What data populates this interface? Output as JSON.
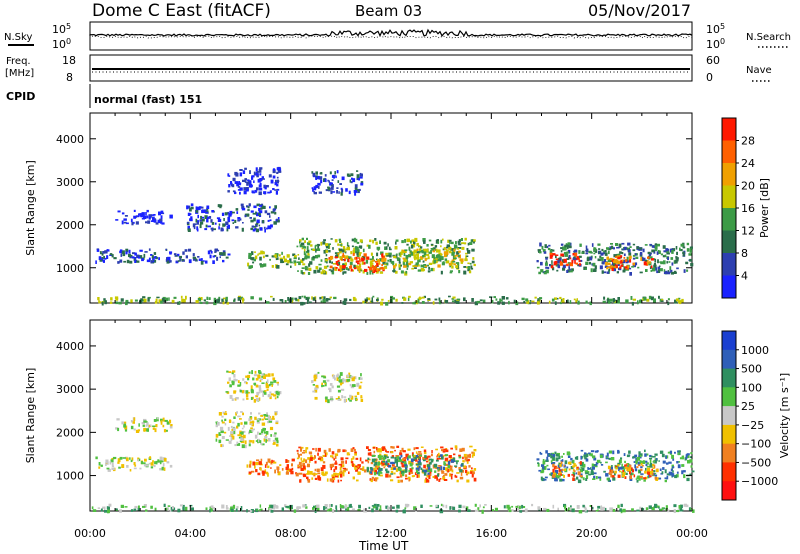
{
  "header": {
    "station": "Dome C East (fitACF)",
    "beam": "Beam 03",
    "date": "05/Nov/2017"
  },
  "status_panels": {
    "nsky": {
      "label": "N.Sky",
      "top": "10^5",
      "bottom": "10^0"
    },
    "nsearch": {
      "label": "N.Search",
      "top": "10^5",
      "bottom": "10^0"
    },
    "freq": {
      "label_line1": "Freq.",
      "label_line2": "[MHz]",
      "top": "18",
      "bottom": "8"
    },
    "nave": {
      "label": "Nave",
      "top": "60",
      "bottom": "0"
    },
    "cpid": {
      "label": "CPID",
      "mode": "normal (fast) 151"
    }
  },
  "chart_data": [
    {
      "type": "heatmap",
      "name": "power-panel",
      "ylabel": "Slant Range [km]",
      "yticks": [
        1000,
        2000,
        3000,
        4000
      ],
      "ylim": [
        180,
        4600
      ],
      "xlim": [
        0,
        24
      ],
      "colorbar": {
        "label": "Power [dB]",
        "ticks": [
          "4",
          "8",
          "12",
          "16",
          "20",
          "24",
          "28"
        ],
        "colors": [
          "#1a22ff",
          "#2d3fb0",
          "#2a6d4a",
          "#3c9b46",
          "#c8c800",
          "#f0a000",
          "#ff6000",
          "#ff1800"
        ]
      },
      "patches": [
        {
          "t0": 0.2,
          "t1": 5.6,
          "r0": 1150,
          "r1": 1450,
          "v": 1
        },
        {
          "t0": 1.0,
          "t1": 3.2,
          "r0": 2050,
          "r1": 2350,
          "v": 0
        },
        {
          "t0": 3.8,
          "t1": 7.5,
          "r0": 1900,
          "r1": 2500,
          "v": 1
        },
        {
          "t0": 5.4,
          "t1": 7.5,
          "r0": 2750,
          "r1": 3350,
          "v": 0
        },
        {
          "t0": 8.8,
          "t1": 10.8,
          "r0": 2750,
          "r1": 3300,
          "v": 1
        },
        {
          "t0": 6.2,
          "t1": 8.2,
          "r0": 1050,
          "r1": 1400,
          "v": 3
        },
        {
          "t0": 8.2,
          "t1": 15.3,
          "r0": 900,
          "r1": 1700,
          "v": 3
        },
        {
          "t0": 9.5,
          "t1": 11.8,
          "r0": 950,
          "r1": 1350,
          "v": 6
        },
        {
          "t0": 12.0,
          "t1": 14.8,
          "r0": 1050,
          "r1": 1450,
          "v": 4
        },
        {
          "t0": 17.8,
          "t1": 24.0,
          "r0": 900,
          "r1": 1600,
          "v": 2
        },
        {
          "t0": 18.3,
          "t1": 19.5,
          "r0": 1050,
          "r1": 1350,
          "v": 7
        },
        {
          "t0": 20.5,
          "t1": 22.5,
          "r0": 1000,
          "r1": 1300,
          "v": 6
        },
        {
          "t0": 0.0,
          "t1": 24.0,
          "r0": 200,
          "r1": 350,
          "v": 3
        }
      ]
    },
    {
      "type": "heatmap",
      "name": "velocity-panel",
      "ylabel": "Slant Range [km]",
      "xlabel": "Time UT",
      "xticks": [
        "00:00",
        "04:00",
        "08:00",
        "12:00",
        "16:00",
        "20:00",
        "00:00"
      ],
      "yticks": [
        1000,
        2000,
        3000,
        4000
      ],
      "ylim": [
        180,
        4600
      ],
      "xlim": [
        0,
        24
      ],
      "colorbar": {
        "label": "Velocity [m s⁻¹]",
        "ticks": [
          "1000",
          "500",
          "100",
          "25",
          "−25",
          "−100",
          "−500",
          "−1000"
        ],
        "colors": [
          "#1a3fd0",
          "#2f5fb8",
          "#2f8f60",
          "#50c040",
          "#c8c8c8",
          "#f0c000",
          "#f08020",
          "#ff3000",
          "#ff1010"
        ]
      },
      "patches": [
        {
          "t0": 0.2,
          "t1": 3.2,
          "r0": 1150,
          "r1": 1450,
          "v": 4
        },
        {
          "t0": 1.0,
          "t1": 3.2,
          "r0": 2050,
          "r1": 2350,
          "v": 4
        },
        {
          "t0": 5.0,
          "t1": 7.5,
          "r0": 1700,
          "r1": 2500,
          "v": 4
        },
        {
          "t0": 5.4,
          "t1": 7.5,
          "r0": 2750,
          "r1": 3450,
          "v": 4
        },
        {
          "t0": 8.8,
          "t1": 10.8,
          "r0": 2750,
          "r1": 3400,
          "v": 4
        },
        {
          "t0": 6.2,
          "t1": 8.2,
          "r0": 1050,
          "r1": 1400,
          "v": 6
        },
        {
          "t0": 8.2,
          "t1": 15.3,
          "r0": 900,
          "r1": 1700,
          "v": 6
        },
        {
          "t0": 11.0,
          "t1": 14.8,
          "r0": 1050,
          "r1": 1500,
          "v": 2
        },
        {
          "t0": 17.8,
          "t1": 24.0,
          "r0": 900,
          "r1": 1600,
          "v": 2
        },
        {
          "t0": 18.4,
          "t1": 19.6,
          "r0": 950,
          "r1": 1350,
          "v": 6
        },
        {
          "t0": 20.6,
          "t1": 22.6,
          "r0": 950,
          "r1": 1300,
          "v": 6
        },
        {
          "t0": 0.0,
          "t1": 24.0,
          "r0": 200,
          "r1": 350,
          "v": 3
        }
      ]
    }
  ]
}
